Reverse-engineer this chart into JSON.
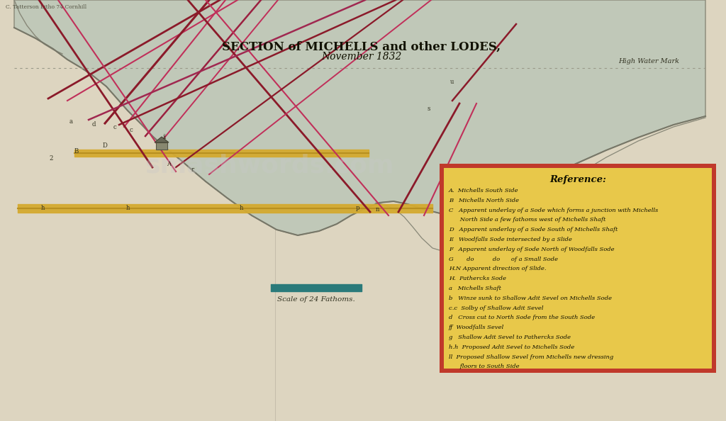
{
  "title": "SECTION of MICHELLS and other LODES,",
  "subtitle": "November 1832",
  "bg_color": "#e8e2d2",
  "paper_color": "#ddd5c0",
  "scale_bar_label": "Scale of 24 Fathoms.",
  "reference_title": "Reference:",
  "reference_items": [
    "A.  Michells South Side",
    "B   Michells North Side",
    "C   Apparent underlay of a Sode which forms a junction with Michells",
    "      North Side a few fathoms west of Michells Shaft",
    "D   Apparent underlay of a Sode South of Michells Shaft",
    "E   Woodfalls Sode intersected by a Slide",
    "F   Apparent underlay of Sode North of Woodfalls Sode",
    "G       do          do      of a Small Sode",
    "H.N Apparent direction of Slide.",
    "H.  Pathercks Sode",
    "a   Michells Shaft",
    "b   Winze sunk to Shallow Adit Sevel on Michells Sode",
    "c.c  Solby of Shallow Adit Sevel",
    "d   Cross cut to North Sode from the South Sode",
    "ff  Woodfalls Sevel",
    "g   Shallow Adit Sevel to Pathercks Sode",
    "h.h  Proposed Adit Sevel to Michells Sode",
    "ll  Proposed Shallow Sevel from Michells new dressing",
    "      floors to South Side"
  ],
  "ref_box_color": "#e8c84a",
  "ref_box_edge": "#c0392b",
  "bottom_text": "High Water Mark",
  "credit_text": "C. Tatterson Litho 74 Cornhill",
  "watermark": "smashwords.com",
  "lode_color_dark": "#8B1A2A",
  "lode_color_light": "#C0305A",
  "terrain_color": "#c0c8b8",
  "terrain_line_color": "#888878",
  "scale_bar_color": "#2a7a7a",
  "band_color": "#d4aa30"
}
